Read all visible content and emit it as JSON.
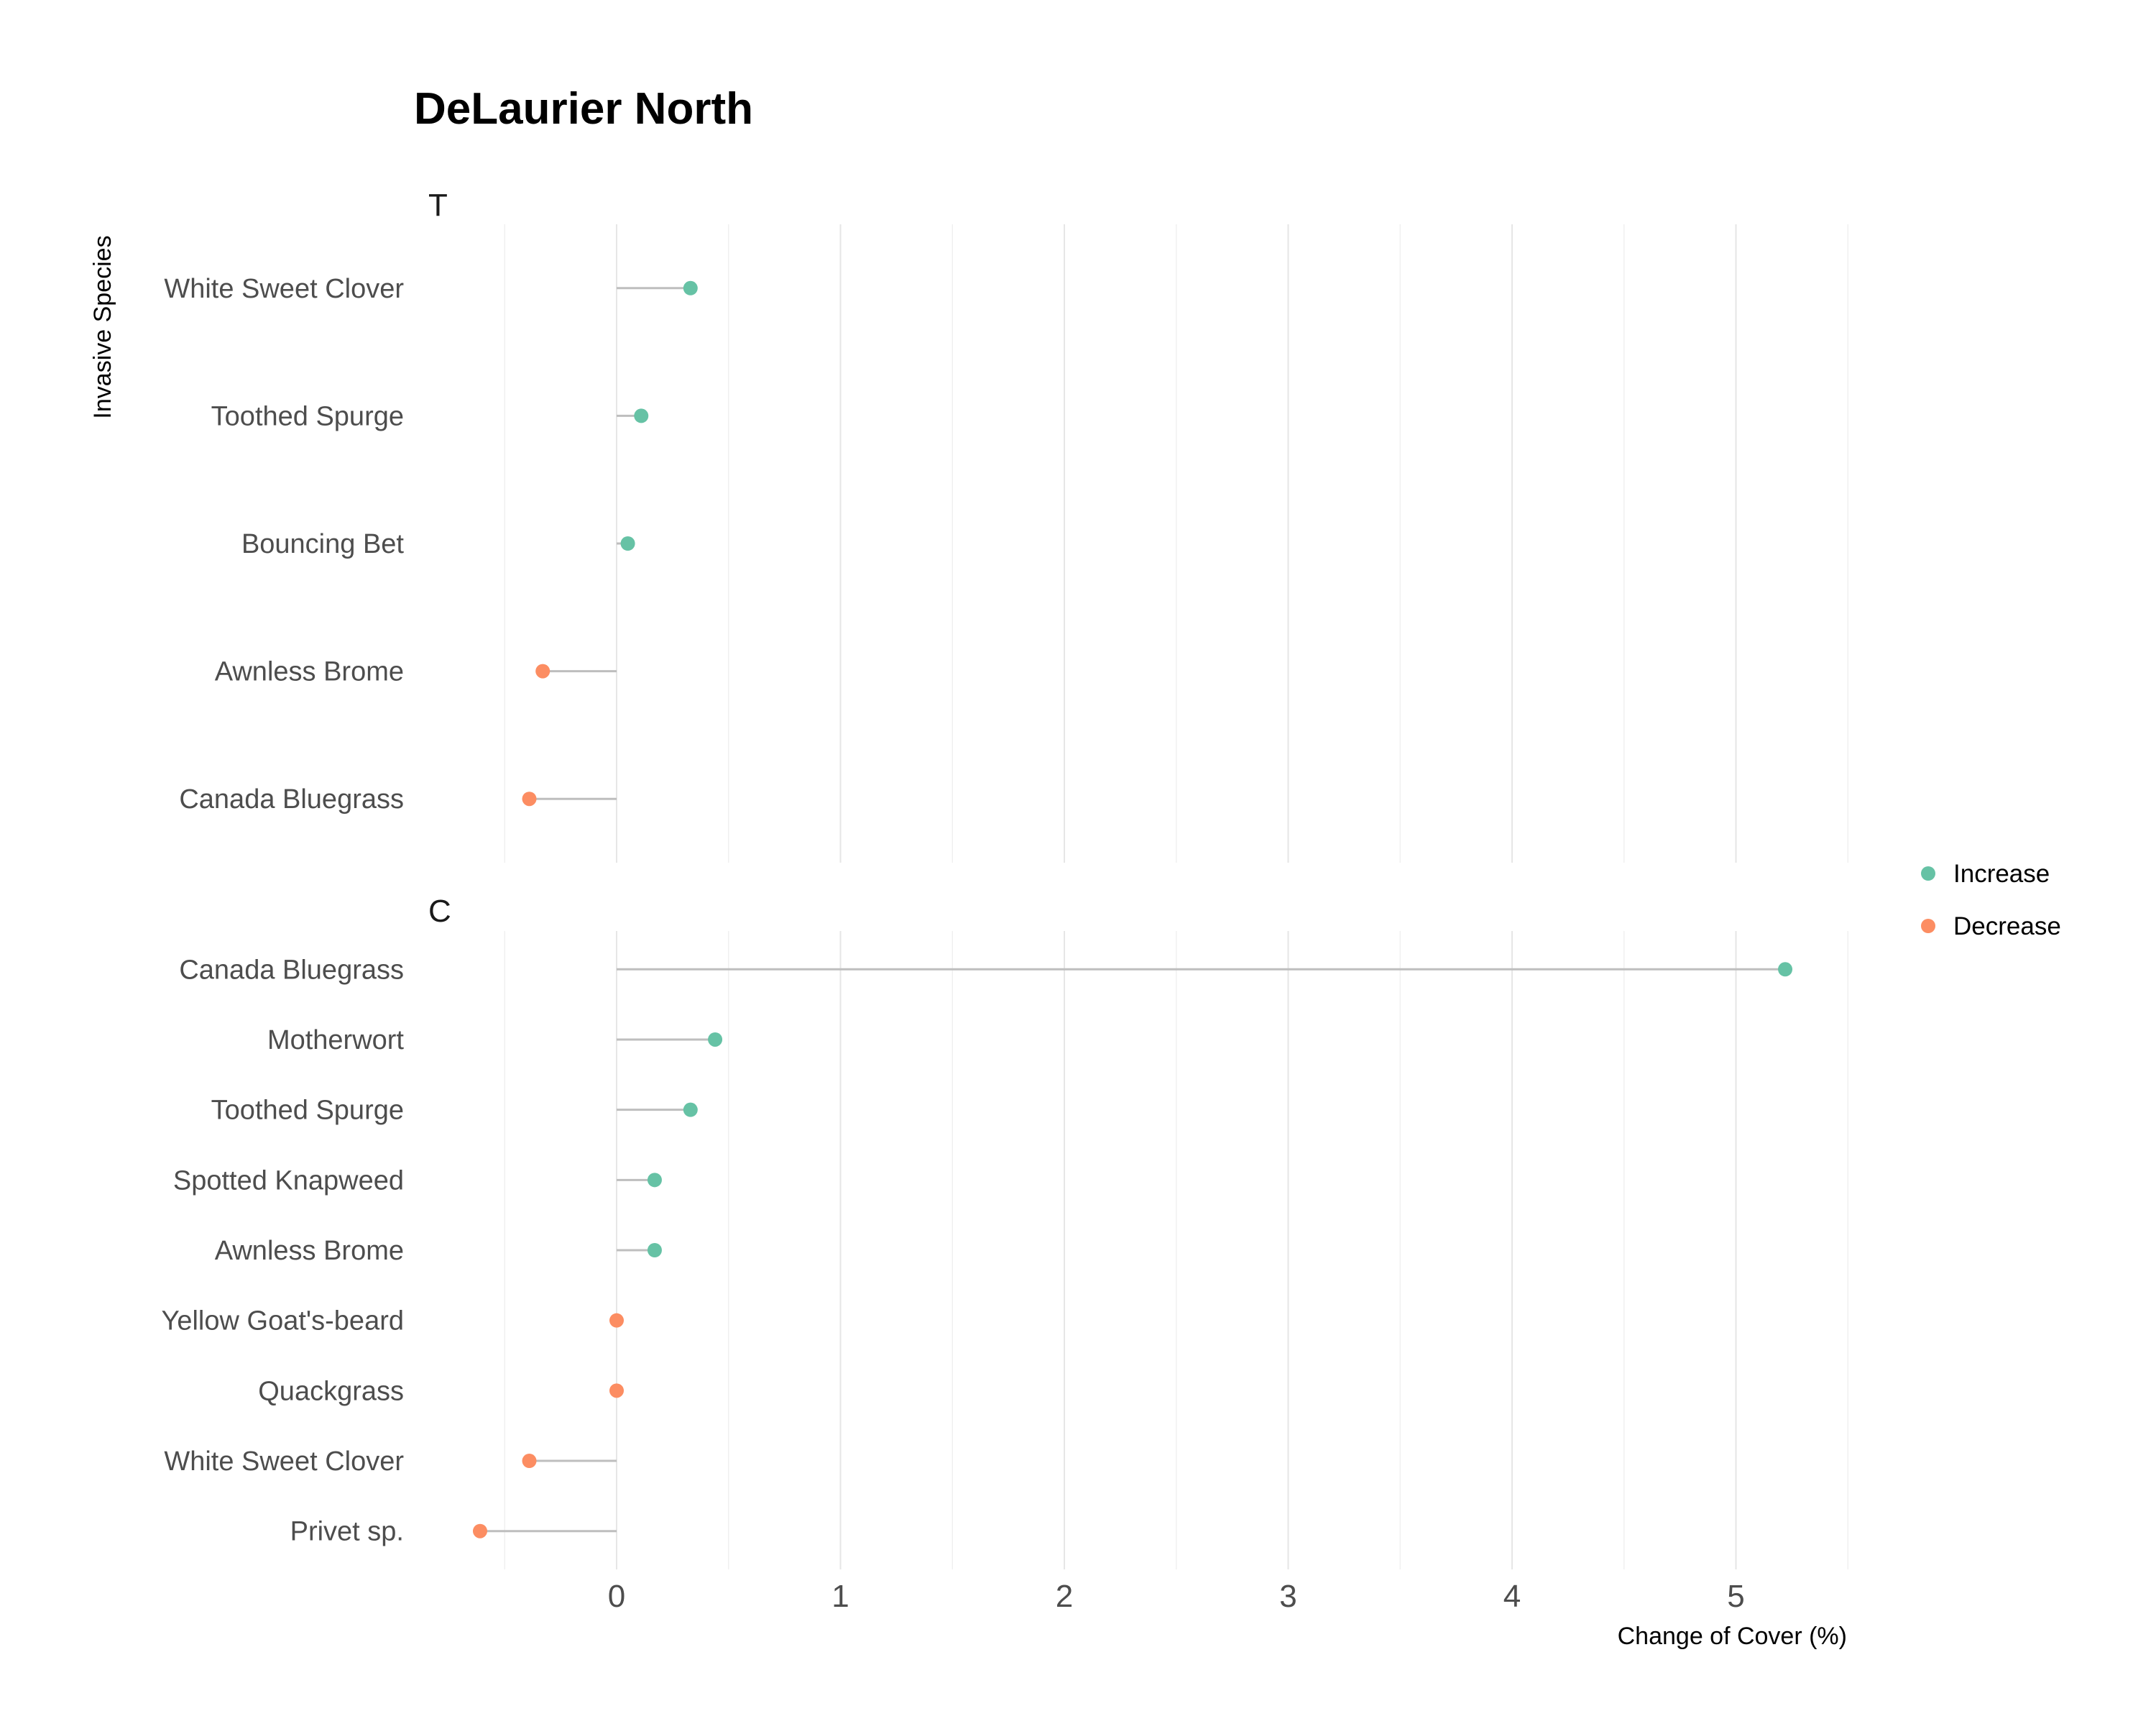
{
  "chart_data": {
    "type": "lollipop",
    "title": "DeLaurier North",
    "xlabel": "Change of Cover (%)",
    "ylabel": "Invasive Species",
    "xlim": [
      -0.6,
      5.5
    ],
    "xticks": [
      0,
      1,
      2,
      3,
      4,
      5
    ],
    "grid": true,
    "legend": {
      "placement": "right",
      "entries": [
        {
          "label": "Increase",
          "color": "#66c2a5"
        },
        {
          "label": "Decrease",
          "color": "#fc8d62"
        }
      ]
    },
    "facets": [
      {
        "label": "T",
        "categories": [
          "White Sweet Clover",
          "Toothed Spurge",
          "Bouncing Bet",
          "Awnless Brome",
          "Canada Bluegrass"
        ],
        "values": [
          0.33,
          0.11,
          0.05,
          -0.33,
          -0.39
        ],
        "direction": [
          "Increase",
          "Increase",
          "Increase",
          "Decrease",
          "Decrease"
        ]
      },
      {
        "label": "C",
        "categories": [
          "Canada Bluegrass",
          "Motherwort",
          "Toothed Spurge",
          "Spotted Knapweed",
          "Awnless Brome",
          "Yellow Goat's-beard",
          "Quackgrass",
          "White Sweet Clover",
          "Privet sp."
        ],
        "values": [
          5.22,
          0.44,
          0.33,
          0.17,
          0.17,
          0.0,
          0.0,
          -0.39,
          -0.61
        ],
        "direction": [
          "Increase",
          "Increase",
          "Increase",
          "Increase",
          "Increase",
          "Decrease",
          "Decrease",
          "Decrease",
          "Decrease"
        ]
      }
    ]
  }
}
